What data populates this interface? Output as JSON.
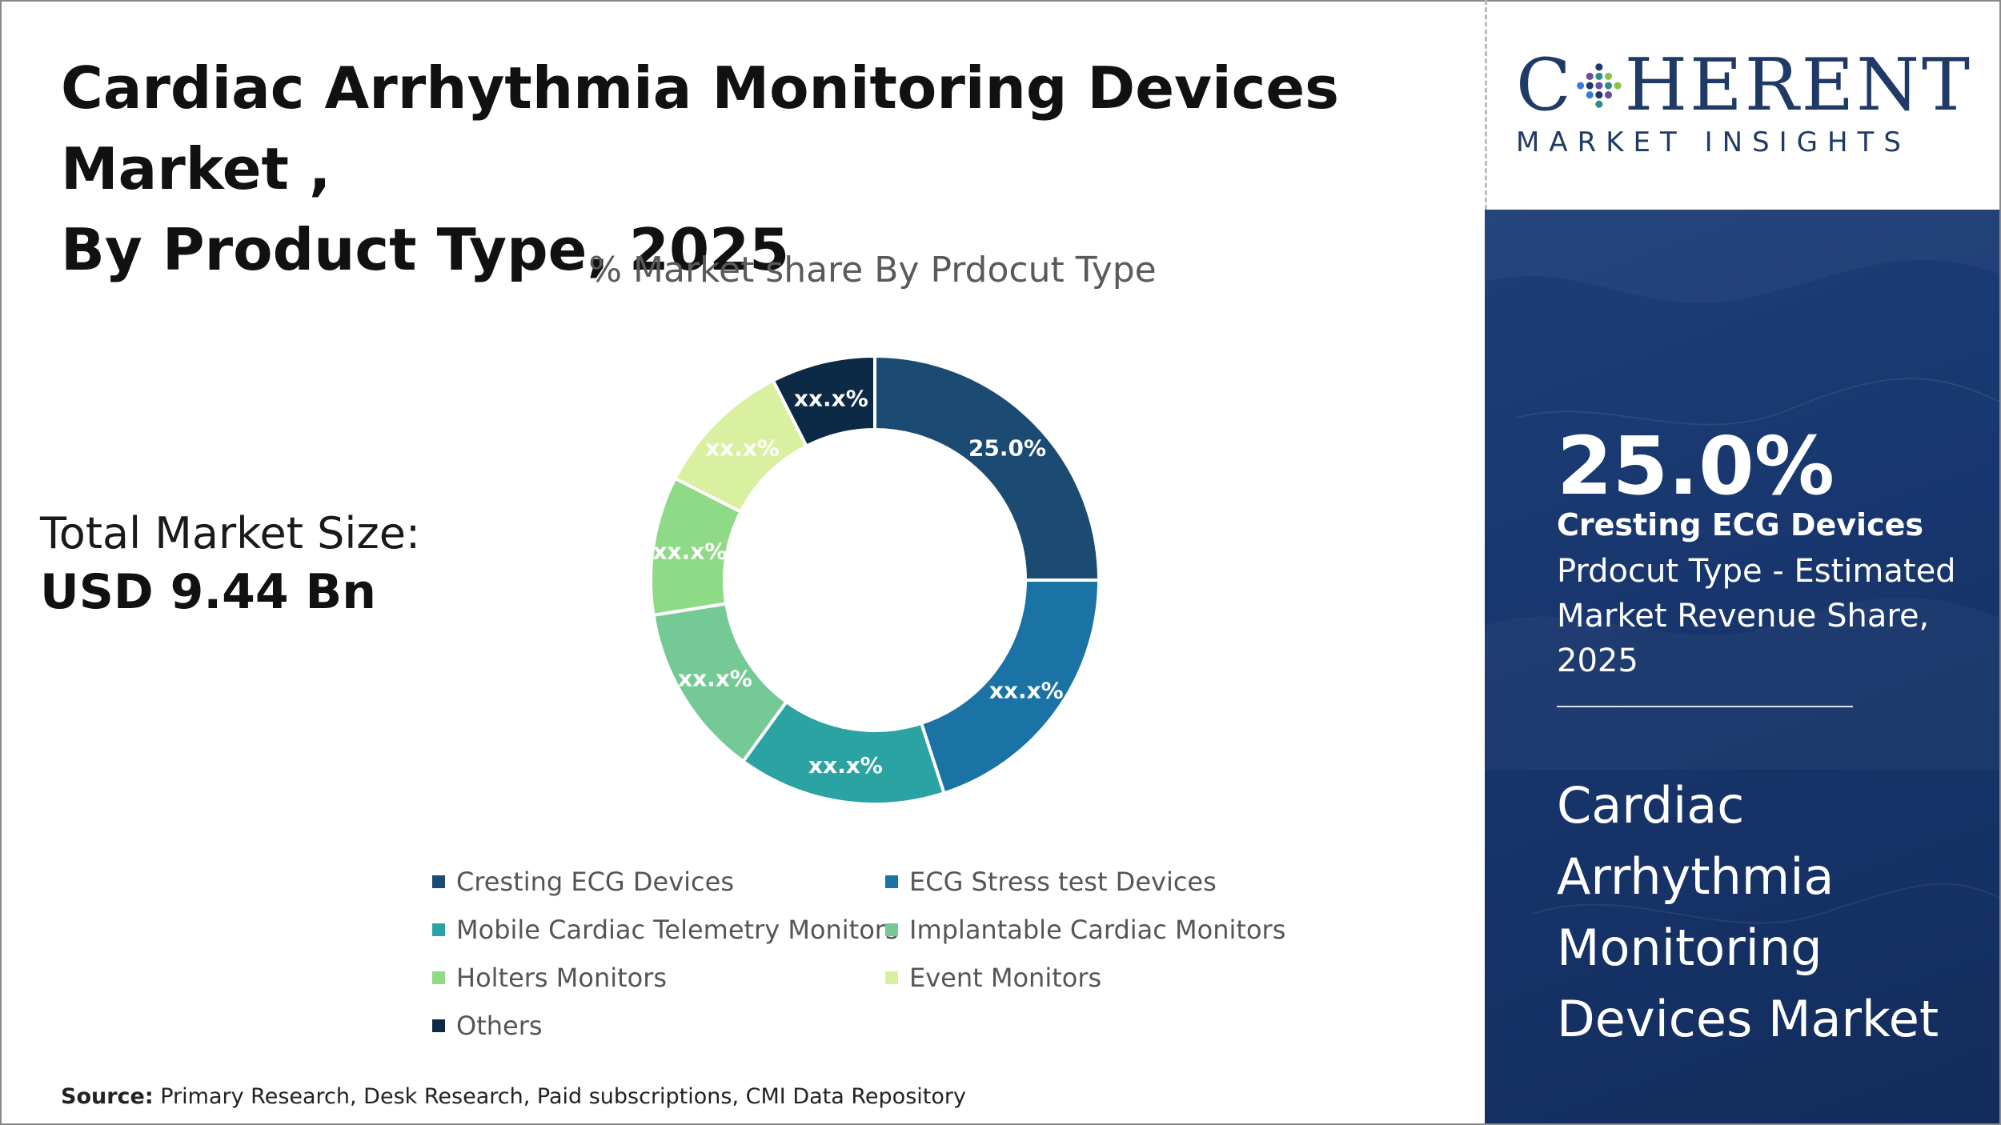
{
  "title_lines": [
    "Cardiac Arrhythmia Monitoring Devices Market ,",
    "By Product Type, 2025"
  ],
  "market_size": {
    "label": "Total Market Size:",
    "value": "USD 9.44 Bn"
  },
  "source": {
    "label": "Source:",
    "text": "Primary Research, Desk Research, Paid subscriptions, CMI Data Repository"
  },
  "logo": {
    "letters": [
      "C",
      "HERENT"
    ],
    "tagline": "MARKET INSIGHTS",
    "dot_colors": [
      "#1f3a66",
      "#6a4c9c",
      "#2e8b8b",
      "#8bc34a",
      "#3a7bd5"
    ]
  },
  "side_panel": {
    "highlight_value": "25.0%",
    "highlight_name": "Cresting ECG Devices",
    "highlight_desc": "Prdocut Type - Estimated Market Revenue Share, 2025",
    "market_name": "Cardiac Arrhythmia Monitoring Devices Market"
  },
  "chart_data": {
    "type": "pie",
    "style": "donut",
    "title": "% Market share By Prdocut Type",
    "legend_position": "bottom",
    "slices": [
      {
        "name": "Cresting ECG Devices",
        "value": 25.0,
        "label": "25.0%",
        "color": "#1b4a72"
      },
      {
        "name": "ECG Stress test Devices",
        "value": 20.0,
        "label": "xx.x%",
        "color": "#1a73a4"
      },
      {
        "name": "Mobile Cardiac Telemetry Monitors",
        "value": 15.0,
        "label": "xx.x%",
        "color": "#2ba3a3"
      },
      {
        "name": "Implantable Cardiac Monitors",
        "value": 12.5,
        "label": "xx.x%",
        "color": "#74c995"
      },
      {
        "name": "Holters Monitors",
        "value": 10.0,
        "label": "xx.x%",
        "color": "#8fda86"
      },
      {
        "name": "Event Monitors",
        "value": 10.0,
        "label": "xx.x%",
        "color": "#d9f0a0"
      },
      {
        "name": "Others",
        "value": 7.5,
        "label": "xx.x%",
        "color": "#0c2a45"
      }
    ]
  }
}
